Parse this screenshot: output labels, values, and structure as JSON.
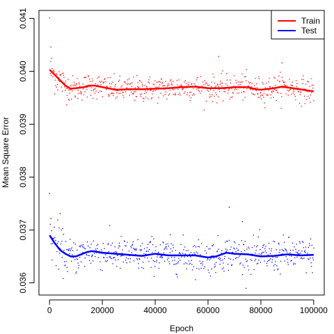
{
  "chart_data": {
    "type": "scatter",
    "title": "",
    "xlabel": "Epoch",
    "ylabel": "Mean Square Error",
    "xlim": [
      -4000,
      104000
    ],
    "ylim": [
      0.03577,
      0.04115
    ],
    "xticks": [
      0,
      20000,
      40000,
      60000,
      80000,
      100000
    ],
    "xtick_labels": [
      "0",
      "20000",
      "40000",
      "60000",
      "80000",
      "100000"
    ],
    "yticks": [
      0.036,
      0.037,
      0.038,
      0.039,
      0.04,
      0.041
    ],
    "ytick_labels": [
      "0.036",
      "0.037",
      "0.038",
      "0.039",
      "0.040",
      "0.041"
    ],
    "grid": false,
    "legend_position": "top-right",
    "series": [
      {
        "name": "Train",
        "color": "#ff0000",
        "points_per_series_note_free": true,
        "n_points": 600,
        "scatter_center": 0.03968,
        "scatter_spread": 0.00012,
        "outliers": [
          [
            0,
            0.04101
          ],
          [
            500,
            0.04046
          ],
          [
            64000,
            0.04028
          ],
          [
            88000,
            0.04016
          ]
        ],
        "smooth": {
          "x": [
            0,
            3000,
            6000,
            8000,
            10000,
            13000,
            15000,
            17000,
            20000,
            25000,
            30000,
            35000,
            40000,
            45000,
            50000,
            55000,
            60000,
            65000,
            70000,
            75000,
            78000,
            80000,
            85000,
            88000,
            92000,
            96000,
            100000
          ],
          "y": [
            0.04003,
            0.03988,
            0.03973,
            0.03967,
            0.03968,
            0.0397,
            0.03973,
            0.03973,
            0.0397,
            0.03965,
            0.03966,
            0.03966,
            0.03967,
            0.03968,
            0.0397,
            0.03971,
            0.03968,
            0.03968,
            0.0397,
            0.0397,
            0.03966,
            0.03965,
            0.03968,
            0.03971,
            0.03968,
            0.03965,
            0.03962
          ]
        }
      },
      {
        "name": "Test",
        "color": "#0000ff",
        "n_points": 600,
        "scatter_center": 0.03652,
        "scatter_spread": 0.00016,
        "outliers": [
          [
            0,
            0.03769
          ],
          [
            500,
            0.03722
          ],
          [
            4000,
            0.03731
          ],
          [
            68000,
            0.03743
          ],
          [
            73000,
            0.03716
          ]
        ],
        "smooth": {
          "x": [
            0,
            2000,
            4000,
            6000,
            8000,
            10000,
            12000,
            14000,
            16000,
            20000,
            25000,
            30000,
            35000,
            40000,
            45000,
            50000,
            55000,
            60000,
            63000,
            67000,
            70000,
            75000,
            80000,
            85000,
            90000,
            95000,
            100000
          ],
          "y": [
            0.0369,
            0.03675,
            0.03662,
            0.03655,
            0.0365,
            0.0365,
            0.03654,
            0.03658,
            0.0366,
            0.03657,
            0.03655,
            0.03653,
            0.03651,
            0.03655,
            0.03652,
            0.03652,
            0.03652,
            0.03648,
            0.0365,
            0.03657,
            0.03655,
            0.03654,
            0.0365,
            0.03651,
            0.03654,
            0.03652,
            0.03653
          ]
        }
      }
    ]
  }
}
